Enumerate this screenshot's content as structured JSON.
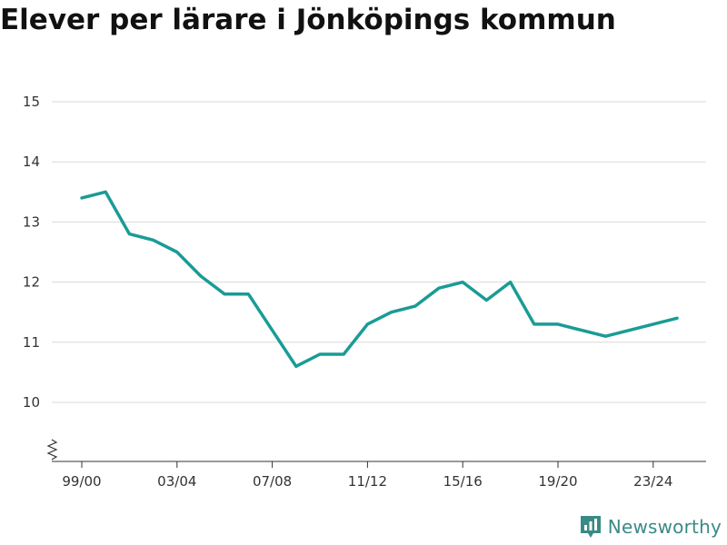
{
  "chart_data": {
    "type": "line",
    "title": "Elever per lärare i Jönköpings kommun",
    "xlabel": "",
    "ylabel": "",
    "x": [
      "99/00",
      "00/01",
      "01/02",
      "02/03",
      "03/04",
      "04/05",
      "05/06",
      "06/07",
      "07/08",
      "08/09",
      "09/10",
      "10/11",
      "11/12",
      "12/13",
      "13/14",
      "14/15",
      "15/16",
      "16/17",
      "17/18",
      "18/19",
      "19/20",
      "20/21",
      "21/22",
      "22/23",
      "23/24",
      "24/25"
    ],
    "series": [
      {
        "values": [
          13.4,
          13.5,
          12.8,
          12.7,
          12.5,
          12.1,
          11.8,
          11.8,
          11.2,
          10.6,
          10.8,
          10.8,
          11.3,
          11.5,
          11.6,
          11.9,
          12.0,
          11.7,
          12.0,
          11.3,
          11.3,
          11.2,
          11.1,
          11.2,
          11.3,
          11.4
        ],
        "color": "#1a9b96"
      }
    ],
    "x_tick_labels": [
      "99/00",
      "03/04",
      "07/08",
      "11/12",
      "15/16",
      "19/20",
      "23/24"
    ],
    "y_ticks": [
      10,
      11,
      12,
      13,
      14,
      15
    ],
    "ylim": [
      9,
      15
    ],
    "y_axis_break": true,
    "grid": "horizontal",
    "legend": "none"
  },
  "brand": {
    "name": "Newsworthy",
    "color": "#3a8a87",
    "icon": "newsworthy-logo-icon"
  }
}
